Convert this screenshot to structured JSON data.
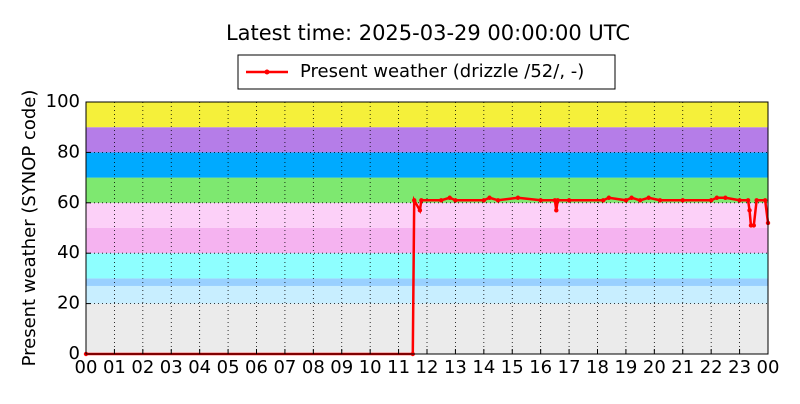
{
  "chart_data": {
    "type": "line",
    "title": "Latest time: 2025-03-29 00:00:00 UTC",
    "y_label": "Present weather (SYNOP code)",
    "legend": "top",
    "grid": true,
    "xlim": [
      0,
      24
    ],
    "xticks": [
      {
        "value": 0,
        "label": "00"
      },
      {
        "value": 1,
        "label": "01"
      },
      {
        "value": 2,
        "label": "02"
      },
      {
        "value": 3,
        "label": "03"
      },
      {
        "value": 4,
        "label": "04"
      },
      {
        "value": 5,
        "label": "05"
      },
      {
        "value": 6,
        "label": "06"
      },
      {
        "value": 7,
        "label": "07"
      },
      {
        "value": 8,
        "label": "08"
      },
      {
        "value": 9,
        "label": "09"
      },
      {
        "value": 10,
        "label": "10"
      },
      {
        "value": 11,
        "label": "11"
      },
      {
        "value": 12,
        "label": "12"
      },
      {
        "value": 13,
        "label": "13"
      },
      {
        "value": 14,
        "label": "14"
      },
      {
        "value": 15,
        "label": "15"
      },
      {
        "value": 16,
        "label": "16"
      },
      {
        "value": 17,
        "label": "17"
      },
      {
        "value": 18,
        "label": "18"
      },
      {
        "value": 19,
        "label": "19"
      },
      {
        "value": 20,
        "label": "20"
      },
      {
        "value": 21,
        "label": "21"
      },
      {
        "value": 22,
        "label": "22"
      },
      {
        "value": 23,
        "label": "23"
      },
      {
        "value": 24,
        "label": "00"
      }
    ],
    "ylim": [
      0,
      100
    ],
    "yticks": [
      0,
      20,
      40,
      60,
      80,
      100
    ],
    "bands": [
      {
        "from": 0,
        "to": 20,
        "color": "#ebebeb"
      },
      {
        "from": 20,
        "to": 27,
        "color": "#c8eeff"
      },
      {
        "from": 27,
        "to": 30,
        "color": "#99d0ff"
      },
      {
        "from": 30,
        "to": 40,
        "color": "#8effff"
      },
      {
        "from": 40,
        "to": 50,
        "color": "#f5b3f0"
      },
      {
        "from": 50,
        "to": 60,
        "color": "#fcd0f8"
      },
      {
        "from": 60,
        "to": 70,
        "color": "#7ee870"
      },
      {
        "from": 70,
        "to": 80,
        "color": "#00aaff"
      },
      {
        "from": 80,
        "to": 90,
        "color": "#b57de8"
      },
      {
        "from": 90,
        "to": 100,
        "color": "#f5f03a"
      }
    ],
    "x": [
      0,
      11.5,
      11.55,
      11.75,
      11.8,
      12.5,
      12.8,
      13.0,
      14.0,
      14.2,
      14.5,
      15.2,
      16.0,
      16.5,
      16.55,
      16.6,
      17.0,
      18.2,
      18.4,
      19.0,
      19.2,
      19.5,
      19.8,
      20.2,
      21.0,
      22.0,
      22.2,
      22.5,
      23.0,
      23.3,
      23.35,
      23.4,
      23.5,
      23.6,
      23.9,
      24
    ],
    "series": [
      {
        "name": "Present weather (drizzle /52/, -)",
        "color": "#ff0000",
        "values": [
          0,
          0,
          61,
          57,
          61,
          61,
          62,
          61,
          61,
          62,
          61,
          62,
          61,
          61,
          57,
          61,
          61,
          61,
          62,
          61,
          62,
          61,
          62,
          61,
          61,
          61,
          62,
          62,
          61,
          61,
          57,
          51,
          51,
          61,
          61,
          52
        ]
      }
    ]
  }
}
